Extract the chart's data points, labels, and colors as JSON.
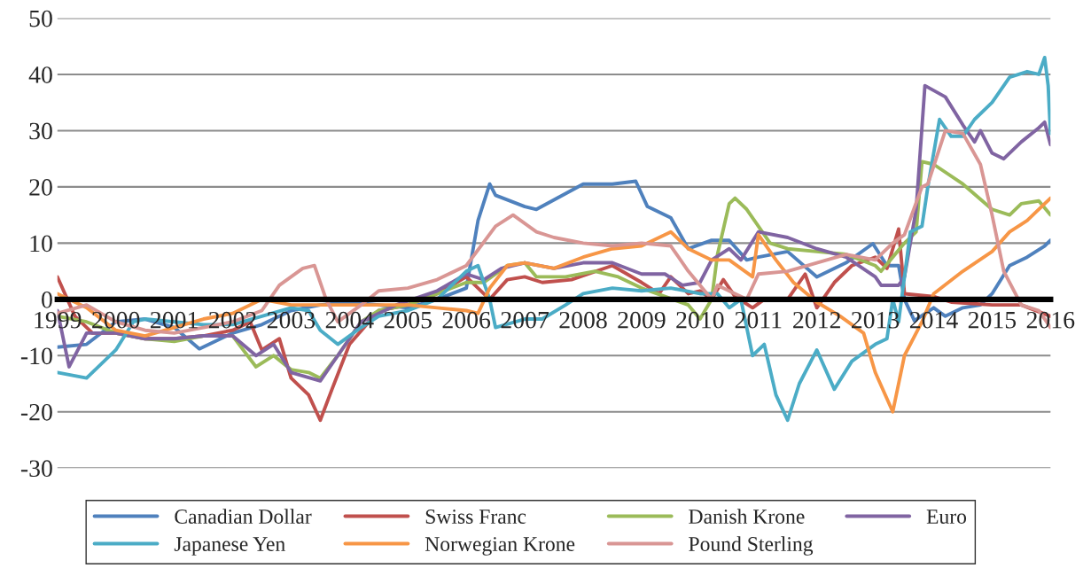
{
  "chart_data": {
    "type": "line",
    "xlim": [
      1999,
      2016
    ],
    "ylim": [
      -30,
      50
    ],
    "xticks": [
      1999,
      2000,
      2001,
      2002,
      2003,
      2004,
      2005,
      2006,
      2007,
      2008,
      2009,
      2010,
      2011,
      2012,
      2013,
      2014,
      2015,
      2016
    ],
    "yticks": [
      -30,
      -20,
      -10,
      0,
      10,
      20,
      30,
      40,
      50
    ],
    "grid": "y",
    "legend": "bottom",
    "series": [
      {
        "name": "Canadian Dollar",
        "color": "#4f81bd",
        "x": [
          1999,
          1999.5,
          2000,
          2000.5,
          2001,
          2001.43,
          2002,
          2002.5,
          2003,
          2003.5,
          2004,
          2005,
          2005.5,
          2006,
          2006.2,
          2006.4,
          2006.5,
          2007,
          2007.2,
          2008,
          2008.5,
          2008.9,
          2009.1,
          2009.5,
          2009.8,
          2010.2,
          2010.5,
          2010.8,
          2011,
          2011.5,
          2012,
          2012.5,
          2012.96,
          2013.2,
          2013.4,
          2013.5,
          2013.67,
          2014,
          2014.2,
          2014.5,
          2014.8,
          2015,
          2015.3,
          2015.6,
          2015.9,
          2016
        ],
        "values": [
          -8.5,
          -8,
          -4,
          -3.5,
          -5,
          -8.8,
          -6,
          -4.5,
          -2,
          -1,
          -0.5,
          -1.5,
          0,
          2,
          14,
          20.5,
          18.5,
          16.5,
          16,
          20.5,
          20.5,
          21,
          16.5,
          14.5,
          9,
          10.5,
          10.5,
          7,
          7.5,
          8.5,
          4,
          6.5,
          9.9,
          6,
          6,
          0,
          -3.8,
          -1.5,
          -3,
          -1.5,
          -1,
          1,
          6,
          7.5,
          9.5,
          10.5
        ]
      },
      {
        "name": "Swiss Franc",
        "color": "#c0504d",
        "x": [
          1999,
          1999.3,
          1999.6,
          2000,
          2000.5,
          2001,
          2001.5,
          2002,
          2002.3,
          2002.5,
          2002.8,
          2003,
          2003.3,
          2003.5,
          2003.7,
          2004,
          2004.5,
          2005,
          2005.5,
          2006,
          2006.2,
          2006.4,
          2006.7,
          2007,
          2007.3,
          2007.8,
          2008.5,
          2009,
          2009.3,
          2009.5,
          2009.8,
          2010,
          2010.2,
          2010.4,
          2010.6,
          2010.9,
          2011.1,
          2011.5,
          2011.8,
          2012,
          2012.3,
          2012.6,
          2013,
          2013.2,
          2013.4,
          2013.5,
          2014,
          2014.3,
          2015,
          2015.5,
          2016
        ],
        "values": [
          4,
          -3,
          -6,
          -6,
          -7,
          -7,
          -6.5,
          -5.5,
          -4,
          -9,
          -7,
          -14,
          -17,
          -21.5,
          -16,
          -8,
          -2,
          -1,
          1,
          4,
          2,
          0,
          3.5,
          4,
          3,
          3.5,
          6,
          3,
          1,
          4,
          1,
          1.5,
          0,
          3.5,
          0.5,
          -1.5,
          0,
          0,
          4.5,
          -1.5,
          3,
          6,
          7.5,
          5.5,
          12.5,
          1,
          0.5,
          -0.5,
          -1,
          -1,
          -3
        ]
      },
      {
        "name": "Danish Krone",
        "color": "#9bbb59",
        "x": [
          1999,
          1999.5,
          2000,
          2000.5,
          2001,
          2001.5,
          2002,
          2002.4,
          2002.7,
          2003,
          2003.3,
          2003.5,
          2003.8,
          2004.2,
          2004.5,
          2005,
          2005.5,
          2006,
          2006.3,
          2006.7,
          2007,
          2007.2,
          2007.7,
          2008.2,
          2008.6,
          2009,
          2009.4,
          2009.8,
          2010,
          2010.2,
          2010.3,
          2010.5,
          2010.6,
          2010.8,
          2011,
          2011.2,
          2011.5,
          2012,
          2012.5,
          2013,
          2013.1,
          2013.5,
          2013.7,
          2013.8,
          2014,
          2014.5,
          2015,
          2015.3,
          2015.5,
          2015.8,
          2016
        ],
        "values": [
          -3,
          -4,
          -6,
          -7,
          -7.5,
          -6.5,
          -6.5,
          -12,
          -10,
          -12.5,
          -13,
          -14,
          -10,
          -4,
          -2,
          -1,
          1,
          3,
          3,
          6,
          6.5,
          4,
          4,
          5,
          4,
          2,
          0.5,
          -1,
          -3.5,
          0,
          8,
          17,
          18,
          16,
          13,
          10,
          9,
          8.5,
          8,
          6,
          5,
          10,
          12,
          24.5,
          24,
          20.5,
          16,
          15,
          17,
          17.5,
          15
        ]
      },
      {
        "name": "Euro",
        "color": "#8064a2",
        "x": [
          1999,
          1999.2,
          1999.4,
          1999.5,
          2000,
          2000.5,
          2001,
          2001.5,
          2002,
          2002.4,
          2002.7,
          2003,
          2003.5,
          2003.8,
          2004.2,
          2004.8,
          2005.5,
          2006,
          2006.3,
          2006.6,
          2007,
          2007.5,
          2008,
          2008.5,
          2009,
          2009.4,
          2009.7,
          2010,
          2010.2,
          2010.5,
          2010.7,
          2011,
          2011.5,
          2012,
          2012.5,
          2013,
          2013.1,
          2013.4,
          2013.5,
          2013.7,
          2013.85,
          2014.2,
          2014.5,
          2014.7,
          2014.8,
          2015,
          2015.2,
          2015.5,
          2015.8,
          2015.9,
          2016
        ],
        "values": [
          -2,
          -12,
          -8,
          -6,
          -6,
          -7,
          -7,
          -6.5,
          -6.5,
          -10,
          -8,
          -13,
          -14.5,
          -10,
          -4,
          -1,
          1.5,
          4.5,
          3.5,
          5.5,
          6.5,
          5.5,
          6.5,
          6.5,
          4.5,
          4.5,
          2.5,
          3,
          7,
          9,
          7,
          12,
          11,
          9,
          7.5,
          4,
          2.5,
          2.5,
          4,
          16,
          38,
          36,
          31,
          28,
          30,
          26,
          25,
          28,
          30.5,
          31.5,
          27.5
        ]
      },
      {
        "name": "Japanese Yen",
        "color": "#4bacc6",
        "x": [
          1999,
          1999.5,
          2000,
          2000.3,
          2000.5,
          2001,
          2001.5,
          2002,
          2002.5,
          2003,
          2003.3,
          2003.5,
          2003.8,
          2004.2,
          2004.5,
          2005,
          2005.5,
          2006,
          2006.2,
          2006.4,
          2006.5,
          2007,
          2007.3,
          2007.7,
          2008,
          2008.5,
          2009,
          2009.5,
          2010,
          2010.3,
          2010.5,
          2010.7,
          2010.9,
          2011.1,
          2011.3,
          2011.5,
          2011.7,
          2012,
          2012.3,
          2012.6,
          2013,
          2013.2,
          2013.3,
          2013.4,
          2013.6,
          2013.8,
          2013.9,
          2014.1,
          2014.3,
          2014.5,
          2014.7,
          2015,
          2015.3,
          2015.6,
          2015.8,
          2015.9,
          2015.96,
          2016
        ],
        "values": [
          -13,
          -14,
          -9,
          -4,
          -3.5,
          -4,
          -4.5,
          -4.5,
          -3,
          -1.5,
          -2,
          -5.5,
          -8,
          -5,
          -3,
          -2,
          0,
          5,
          6,
          0,
          -5,
          -3.5,
          -3.5,
          -1,
          1,
          2,
          1.5,
          2,
          1,
          1,
          -1.5,
          0,
          -10,
          -8,
          -17,
          -21.5,
          -15,
          -9,
          -16,
          -11,
          -8,
          -7,
          0,
          -4,
          12,
          13,
          20,
          32,
          29,
          29,
          32,
          35,
          39.5,
          40.5,
          40,
          43,
          38,
          29.5
        ]
      },
      {
        "name": "Norwegian Krone",
        "color": "#f79646",
        "x": [
          1999,
          1999.5,
          2000,
          2000.5,
          2001,
          2001.5,
          2002,
          2002.5,
          2003,
          2003.5,
          2004,
          2005,
          2005.5,
          2006,
          2006.2,
          2006.4,
          2006.7,
          2007,
          2007.5,
          2008,
          2008.5,
          2009,
          2009.5,
          2009.8,
          2010.2,
          2010.5,
          2010.9,
          2011,
          2011.3,
          2011.6,
          2012,
          2012.4,
          2012.8,
          2013,
          2013.3,
          2013.5,
          2013.8,
          2014,
          2014.5,
          2015,
          2015.3,
          2015.6,
          2015.9,
          2016
        ],
        "values": [
          1,
          -1.5,
          -5.5,
          -6.5,
          -5,
          -3.5,
          -2.5,
          0,
          -1,
          -1,
          -1,
          -1,
          -1.5,
          -2,
          -2.5,
          2,
          6,
          6.5,
          5.5,
          7.5,
          9,
          9.5,
          12,
          9,
          7,
          7,
          4,
          11.5,
          7,
          3,
          -0.5,
          -3,
          -6,
          -13,
          -20,
          -10,
          -4,
          1,
          5,
          8.5,
          12,
          14,
          17,
          18
        ]
      },
      {
        "name": "Pound Sterling",
        "color": "#d99694",
        "x": [
          1999,
          1999.5,
          2000,
          2000.5,
          2001,
          2001.5,
          2002,
          2002.5,
          2002.8,
          2003.2,
          2003.4,
          2003.6,
          2003.8,
          2004.2,
          2004.5,
          2005,
          2005.5,
          2006,
          2006.5,
          2006.8,
          2007.2,
          2007.5,
          2008,
          2008.5,
          2009,
          2009.5,
          2009.8,
          2010.2,
          2010.3,
          2010.6,
          2010.8,
          2011,
          2011.5,
          2012,
          2012.5,
          2013,
          2013.3,
          2013.5,
          2013.8,
          2013.9,
          2014.2,
          2014.5,
          2014.8,
          2015,
          2015.2,
          2015.5,
          2015.8,
          2016
        ],
        "values": [
          -2.5,
          -1,
          -4,
          -5.5,
          -6,
          -5,
          -4,
          -2,
          2.5,
          5.5,
          6,
          0,
          -4,
          -1,
          1.5,
          2,
          3.5,
          6,
          13,
          15,
          12,
          11,
          10,
          9.5,
          10,
          9.5,
          5,
          0,
          2.5,
          1,
          0,
          4.5,
          5,
          6.5,
          8,
          7,
          10,
          11.5,
          20,
          20.5,
          30,
          29.5,
          24,
          15,
          5,
          -1,
          -2,
          -5
        ]
      }
    ]
  }
}
